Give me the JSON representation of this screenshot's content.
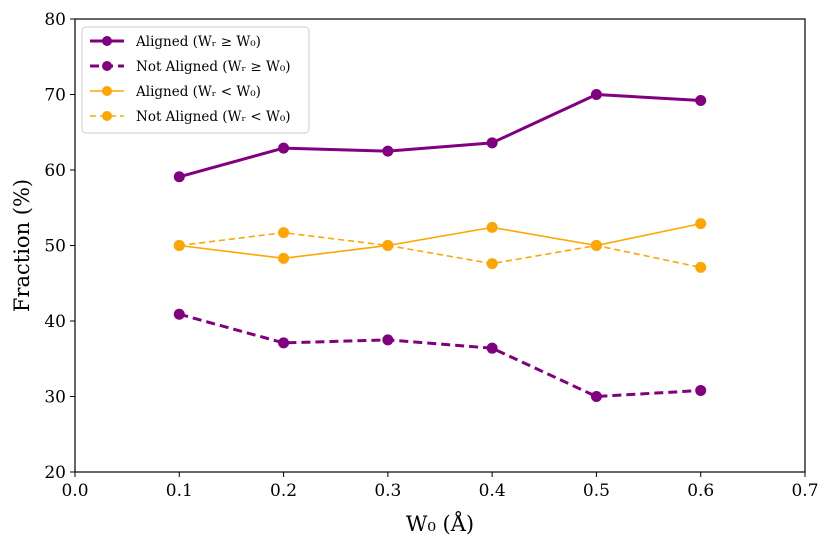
{
  "chart_data": {
    "type": "line",
    "title": "",
    "xlabel": "W₀ (Å)",
    "ylabel": "Fraction (%)",
    "xlim": [
      0.0,
      0.7
    ],
    "ylim": [
      20,
      80
    ],
    "xticks": [
      0.0,
      0.1,
      0.2,
      0.3,
      0.4,
      0.5,
      0.6,
      0.7
    ],
    "xtick_labels": [
      "0.0",
      "0.1",
      "0.2",
      "0.3",
      "0.4",
      "0.5",
      "0.6",
      "0.7"
    ],
    "yticks": [
      20,
      30,
      40,
      50,
      60,
      70,
      80
    ],
    "ytick_labels": [
      "20",
      "30",
      "40",
      "50",
      "60",
      "70",
      "80"
    ],
    "grid": false,
    "legend_position": "top-left",
    "x": [
      0.1,
      0.2,
      0.3,
      0.4,
      0.5,
      0.6
    ],
    "series": [
      {
        "name": "Aligned (Wᵣ ≥ W₀)",
        "color": "#800080",
        "dash": "solid",
        "weight": "thick",
        "values": [
          59.1,
          62.9,
          62.5,
          63.6,
          70.0,
          69.2
        ]
      },
      {
        "name": "Not Aligned (Wᵣ ≥ W₀)",
        "color": "#800080",
        "dash": "dashed",
        "weight": "thick",
        "values": [
          40.9,
          37.1,
          37.5,
          36.4,
          30.0,
          30.8
        ]
      },
      {
        "name": "Aligned (Wᵣ < W₀)",
        "color": "#FFA500",
        "dash": "solid",
        "weight": "thin",
        "values": [
          50.0,
          48.3,
          50.0,
          52.4,
          50.0,
          52.9
        ]
      },
      {
        "name": "Not Aligned (Wᵣ < W₀)",
        "color": "#FFA500",
        "dash": "dashed",
        "weight": "thin",
        "values": [
          50.0,
          51.7,
          50.0,
          47.6,
          50.0,
          47.1
        ]
      }
    ]
  }
}
